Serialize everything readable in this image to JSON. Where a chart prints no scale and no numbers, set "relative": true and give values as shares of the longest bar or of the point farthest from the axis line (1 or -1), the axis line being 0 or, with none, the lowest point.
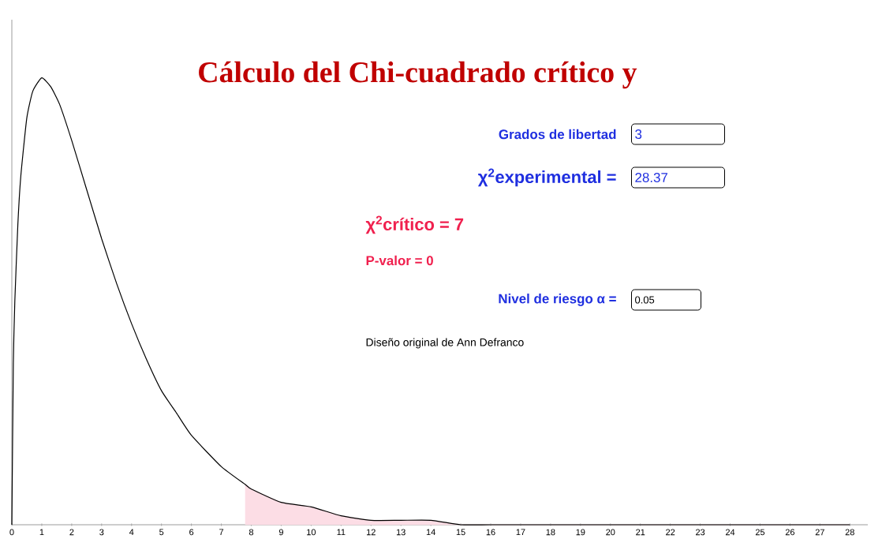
{
  "chart_data": {
    "type": "line",
    "relative": true,
    "title": "Cálculo del Chi-cuadrado crítico  y",
    "x": [
      0,
      0.05,
      0.1,
      0.2,
      0.3,
      0.5,
      0.7,
      1,
      1.3,
      1.6,
      2,
      2.5,
      3,
      3.5,
      4,
      4.5,
      5,
      5.5,
      6,
      7,
      7.8,
      8,
      9,
      10,
      11,
      12,
      13,
      14,
      15,
      16,
      18,
      20,
      22,
      24,
      26,
      28
    ],
    "series": [
      {
        "color": "#000000",
        "values": [
          0,
          0.36,
          0.5,
          0.67,
          0.78,
          0.91,
          0.97,
          1,
          0.98,
          0.94,
          0.86,
          0.75,
          0.64,
          0.54,
          0.45,
          0.37,
          0.3,
          0.25,
          0.2,
          0.13,
          0.09,
          0.08,
          0.05,
          0.04,
          0.02,
          0.01,
          0.01,
          0.01,
          0,
          0,
          0,
          0,
          0,
          0,
          0,
          0
        ]
      },
      {
        "type": "area",
        "color": "#fcdde5",
        "x": [
          7.8,
          8,
          9,
          10,
          11,
          12,
          13,
          14,
          15,
          16,
          18,
          20,
          22,
          24,
          26,
          28
        ],
        "values": [
          0.09,
          0.08,
          0.05,
          0.04,
          0.02,
          0.01,
          0.01,
          0.01,
          0,
          0,
          0,
          0,
          0,
          0,
          0,
          0
        ]
      }
    ],
    "xlim": [
      0,
      28.6
    ],
    "xticks": [
      0,
      1,
      2,
      3,
      4,
      5,
      6,
      7,
      8,
      9,
      10,
      11,
      12,
      13,
      14,
      15,
      16,
      17,
      18,
      19,
      20,
      21,
      22,
      23,
      24,
      25,
      26,
      27,
      28
    ],
    "tick_labels": "x",
    "annotations": [
      "3",
      "28.37",
      "0.05",
      "Grados de libertad",
      "χ$^{2}$experimental =",
      "χ$^{2}$crítico = 7",
      "Nivel de riesgo α =",
      "P-valor = 0",
      "Diseño original de Ann Defranco"
    ]
  }
}
